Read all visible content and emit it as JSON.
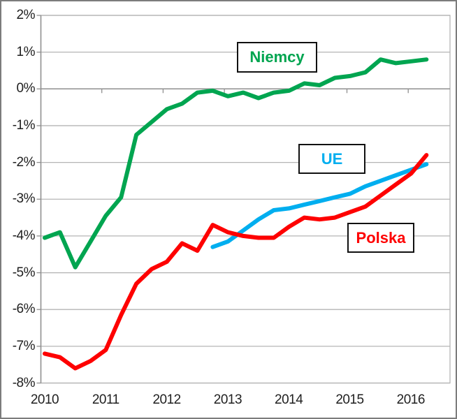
{
  "chart_data": {
    "type": "line",
    "title": "",
    "xlabel": "",
    "ylabel": "",
    "y_unit": "%",
    "y_range": [
      -8,
      2
    ],
    "grid": true,
    "x_tick_labels": [
      "2010",
      "2011",
      "2012",
      "2013",
      "2014",
      "2015",
      "2016"
    ],
    "y_tick_labels": [
      "2%",
      "1%",
      "0%",
      "-1%",
      "-2%",
      "-3%",
      "-4%",
      "-5%",
      "-6%",
      "-7%",
      "-8%"
    ],
    "x_categories": [
      "2010Q1",
      "2010Q2",
      "2010Q3",
      "2010Q4",
      "2011Q1",
      "2011Q2",
      "2011Q3",
      "2011Q4",
      "2012Q1",
      "2012Q2",
      "2012Q3",
      "2012Q4",
      "2013Q1",
      "2013Q2",
      "2013Q3",
      "2013Q4",
      "2014Q1",
      "2014Q2",
      "2014Q3",
      "2014Q4",
      "2015Q1",
      "2015Q2",
      "2015Q3",
      "2015Q4",
      "2016Q1",
      "2016Q2"
    ],
    "series": [
      {
        "name": "Niemcy",
        "color": "#00A550",
        "values": [
          -4.05,
          -3.9,
          -4.85,
          -4.15,
          -3.45,
          -2.95,
          -1.25,
          -0.9,
          -0.55,
          -0.4,
          -0.1,
          -0.05,
          -0.2,
          -0.1,
          -0.25,
          -0.1,
          -0.05,
          0.15,
          0.1,
          0.3,
          0.35,
          0.45,
          0.8,
          0.7,
          0.75,
          0.8
        ]
      },
      {
        "name": "UE",
        "color": "#00AEEF",
        "values": [
          null,
          null,
          null,
          null,
          null,
          null,
          null,
          null,
          null,
          null,
          null,
          -4.3,
          -4.15,
          -3.85,
          -3.55,
          -3.3,
          -3.25,
          -3.15,
          -3.05,
          -2.95,
          -2.85,
          -2.65,
          -2.5,
          -2.35,
          -2.2,
          -2.05
        ]
      },
      {
        "name": "Polska",
        "color": "#FE0000",
        "values": [
          -7.2,
          -7.3,
          -7.6,
          -7.4,
          -7.1,
          -6.15,
          -5.3,
          -4.9,
          -4.7,
          -4.2,
          -4.4,
          -3.7,
          -3.9,
          -4.0,
          -4.05,
          -4.05,
          -3.75,
          -3.5,
          -3.55,
          -3.5,
          -3.35,
          -3.2,
          -2.9,
          -2.6,
          -2.3,
          -1.8
        ]
      }
    ],
    "legend": [
      {
        "label": "Niemcy",
        "color": "#00A550"
      },
      {
        "label": "UE",
        "color": "#00AEEF"
      },
      {
        "label": "Polska",
        "color": "#FE0000"
      }
    ],
    "legend_position": "floating-boxes",
    "colors": {
      "gridline": "#b5b5b5",
      "axis": "#8f8f8f",
      "tick_text": "#1f1f1f",
      "legend_border": "#111111",
      "frame_border": "#7c7c7c",
      "background": "#ffffff"
    }
  }
}
